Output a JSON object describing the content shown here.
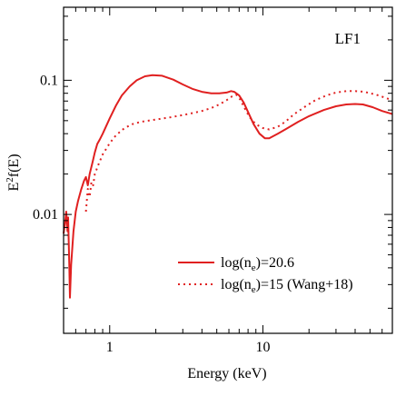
{
  "chart_data": {
    "type": "line",
    "title": "",
    "panel_label": "LF1",
    "xlabel": "Energy (keV)",
    "ylabel": "E^2 f(E)",
    "ylabel_parts": {
      "main": "E",
      "sup": "2",
      "rest": "f(E)"
    },
    "x_scale": "log",
    "y_scale": "log",
    "xlim": [
      0.5,
      70
    ],
    "ylim": [
      0.0013,
      0.35
    ],
    "x_ticks": [
      1,
      10
    ],
    "x_tick_labels": [
      "1",
      "10"
    ],
    "y_ticks": [
      0.01,
      0.1
    ],
    "y_tick_labels": [
      "0.01",
      "0.1"
    ],
    "legend_position": "bottom-right",
    "series": [
      {
        "name": "log(ne)=20.6",
        "legend_parts": {
          "pre": "log(n",
          "sub": "e",
          "post": ")=20.6"
        },
        "style": "solid",
        "color": "#e02020",
        "points": [
          [
            0.5,
            0.0072
          ],
          [
            0.51,
            0.0085
          ],
          [
            0.52,
            0.0105
          ],
          [
            0.53,
            0.0075
          ],
          [
            0.535,
            0.0095
          ],
          [
            0.545,
            0.0042
          ],
          [
            0.55,
            0.0024
          ],
          [
            0.56,
            0.0042
          ],
          [
            0.58,
            0.0075
          ],
          [
            0.6,
            0.0105
          ],
          [
            0.62,
            0.0125
          ],
          [
            0.65,
            0.0152
          ],
          [
            0.68,
            0.0178
          ],
          [
            0.7,
            0.019
          ],
          [
            0.72,
            0.0165
          ],
          [
            0.74,
            0.02
          ],
          [
            0.77,
            0.024
          ],
          [
            0.8,
            0.029
          ],
          [
            0.83,
            0.0335
          ],
          [
            0.86,
            0.036
          ],
          [
            0.9,
            0.04
          ],
          [
            1.0,
            0.052
          ],
          [
            1.1,
            0.065
          ],
          [
            1.2,
            0.077
          ],
          [
            1.35,
            0.09
          ],
          [
            1.5,
            0.1
          ],
          [
            1.7,
            0.107
          ],
          [
            1.9,
            0.109
          ],
          [
            2.2,
            0.108
          ],
          [
            2.6,
            0.101
          ],
          [
            3.0,
            0.093
          ],
          [
            3.5,
            0.086
          ],
          [
            4.0,
            0.082
          ],
          [
            4.6,
            0.08
          ],
          [
            5.2,
            0.08
          ],
          [
            5.8,
            0.081
          ],
          [
            6.2,
            0.083
          ],
          [
            6.5,
            0.082
          ],
          [
            7.0,
            0.077
          ],
          [
            7.5,
            0.068
          ],
          [
            8.0,
            0.058
          ],
          [
            8.7,
            0.047
          ],
          [
            9.5,
            0.04
          ],
          [
            10.3,
            0.037
          ],
          [
            11.0,
            0.037
          ],
          [
            12.5,
            0.04
          ],
          [
            14,
            0.043
          ],
          [
            17,
            0.049
          ],
          [
            20,
            0.054
          ],
          [
            25,
            0.06
          ],
          [
            30,
            0.064
          ],
          [
            35,
            0.066
          ],
          [
            40,
            0.0665
          ],
          [
            45,
            0.066
          ],
          [
            52,
            0.063
          ],
          [
            60,
            0.059
          ],
          [
            70,
            0.056
          ]
        ]
      },
      {
        "name": "log(ne)=15 (Wang+18)",
        "legend_parts": {
          "pre": "log(n",
          "sub": "e",
          "post": ")=15 (Wang+18)"
        },
        "style": "dotted",
        "color": "#e02020",
        "points": [
          [
            0.7,
            0.0105
          ],
          [
            0.72,
            0.0155
          ],
          [
            0.74,
            0.0135
          ],
          [
            0.76,
            0.0175
          ],
          [
            0.78,
            0.0165
          ],
          [
            0.8,
            0.02
          ],
          [
            0.85,
            0.024
          ],
          [
            0.9,
            0.028
          ],
          [
            1.0,
            0.034
          ],
          [
            1.1,
            0.039
          ],
          [
            1.25,
            0.044
          ],
          [
            1.4,
            0.047
          ],
          [
            1.6,
            0.049
          ],
          [
            1.8,
            0.05
          ],
          [
            2.0,
            0.051
          ],
          [
            2.5,
            0.053
          ],
          [
            3.0,
            0.055
          ],
          [
            3.5,
            0.057
          ],
          [
            4.0,
            0.059
          ],
          [
            4.6,
            0.062
          ],
          [
            5.2,
            0.066
          ],
          [
            5.8,
            0.071
          ],
          [
            6.3,
            0.076
          ],
          [
            6.7,
            0.078
          ],
          [
            7.1,
            0.072
          ],
          [
            7.6,
            0.062
          ],
          [
            8.2,
            0.053
          ],
          [
            9.0,
            0.047
          ],
          [
            10.0,
            0.044
          ],
          [
            11.0,
            0.043
          ],
          [
            12.5,
            0.045
          ],
          [
            14,
            0.049
          ],
          [
            16,
            0.056
          ],
          [
            19,
            0.064
          ],
          [
            22,
            0.071
          ],
          [
            26,
            0.077
          ],
          [
            30,
            0.081
          ],
          [
            35,
            0.083
          ],
          [
            40,
            0.083
          ],
          [
            46,
            0.082
          ],
          [
            55,
            0.078
          ],
          [
            63,
            0.074
          ],
          [
            70,
            0.071
          ]
        ]
      }
    ]
  }
}
